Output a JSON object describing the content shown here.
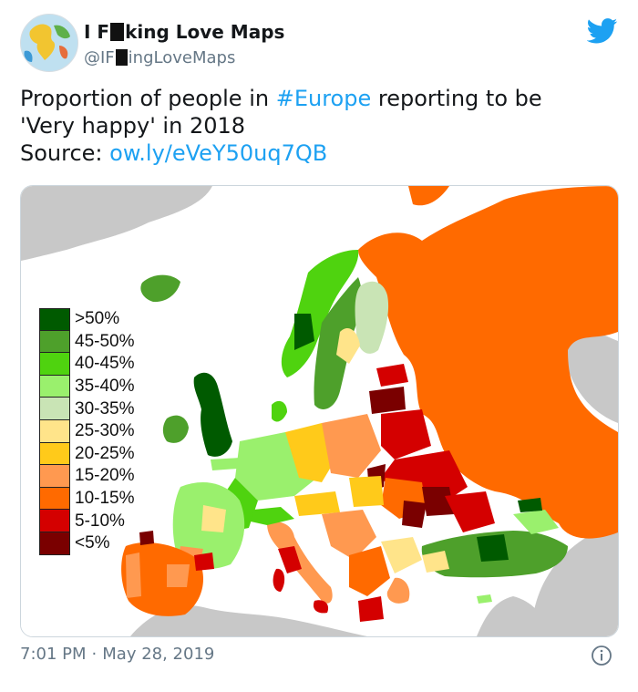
{
  "tweet": {
    "author": {
      "name_part1": "I F",
      "name_part2": "king Love Maps",
      "handle_part1": "@IF",
      "handle_part2": "ingLoveMaps"
    },
    "text": {
      "line1_prefix": "Proportion of people in ",
      "hashtag": "#Europe",
      "line1_suffix": " reporting to be",
      "line2": "'Very happy' in 2018",
      "source_prefix": "Source: ",
      "source_link": "ow.ly/eVeY50uq7QB"
    },
    "time": "7:01 PM",
    "separator": "·",
    "date": "May 28, 2019"
  },
  "map": {
    "legend": [
      {
        "label": ">50%",
        "color": "#005a00"
      },
      {
        "label": "45-50%",
        "color": "#4ea02b"
      },
      {
        "label": "40-45%",
        "color": "#4fd30f"
      },
      {
        "label": "35-40%",
        "color": "#9af06d"
      },
      {
        "label": "30-35%",
        "color": "#c9e4b5"
      },
      {
        "label": "25-30%",
        "color": "#ffe48a"
      },
      {
        "label": "20-25%",
        "color": "#ffca1a"
      },
      {
        "label": "15-20%",
        "color": "#ff9950"
      },
      {
        "label": "10-15%",
        "color": "#ff6a00"
      },
      {
        "label": "5-10%",
        "color": "#d40000"
      },
      {
        "label": "<5%",
        "color": "#7a0000"
      }
    ],
    "colors": {
      "land_outside": "#c8c8c8",
      "sea": "#ffffff",
      "russia": "#ff6a00"
    }
  },
  "colors": {
    "accent": "#1da1f2",
    "muted": "#657786",
    "text": "#14171a"
  },
  "icons": {
    "brand": "twitter-bird-icon",
    "info": "info-icon"
  }
}
